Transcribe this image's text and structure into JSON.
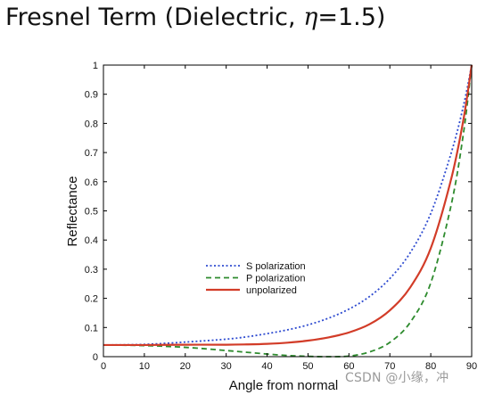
{
  "slide": {
    "title_prefix": "Fresnel Term (Dielectric, ",
    "title_symbol": "η",
    "title_suffix": "=1.5)"
  },
  "watermark": "CSDN @小缘，冲",
  "chart_data": {
    "type": "line",
    "title": "",
    "xlabel": "Angle from normal",
    "ylabel": "Reflectance",
    "xlim": [
      0,
      90
    ],
    "ylim": [
      0,
      1
    ],
    "xticks": [
      "0",
      "10",
      "20",
      "30",
      "40",
      "50",
      "60",
      "70",
      "80",
      "90"
    ],
    "yticks": [
      "0",
      "0.1",
      "0.2",
      "0.3",
      "0.4",
      "0.5",
      "0.6",
      "0.7",
      "0.8",
      "0.9",
      "1"
    ],
    "grid": false,
    "legend_position": "center-left",
    "x": [
      0,
      10,
      20,
      30,
      35,
      40,
      45,
      50,
      55,
      60,
      65,
      70,
      75,
      80,
      85,
      88,
      90
    ],
    "series": [
      {
        "name": "S polarization",
        "color": "#2e4bd0",
        "dash": "dotted",
        "values": [
          0.04,
          0.042,
          0.05,
          0.06,
          0.068,
          0.079,
          0.092,
          0.109,
          0.132,
          0.163,
          0.206,
          0.268,
          0.357,
          0.491,
          0.699,
          0.861,
          1.0
        ]
      },
      {
        "name": "P polarization",
        "color": "#2e8b2e",
        "dash": "dashed",
        "values": [
          0.04,
          0.038,
          0.032,
          0.021,
          0.015,
          0.009,
          0.004,
          0.001,
          0.0,
          0.002,
          0.016,
          0.049,
          0.118,
          0.253,
          0.521,
          0.767,
          1.0
        ]
      },
      {
        "name": "unpolarized",
        "color": "#d23c28",
        "dash": "solid",
        "values": [
          0.04,
          0.04,
          0.041,
          0.041,
          0.042,
          0.044,
          0.048,
          0.055,
          0.066,
          0.083,
          0.111,
          0.159,
          0.238,
          0.372,
          0.61,
          0.814,
          1.0
        ]
      }
    ]
  }
}
